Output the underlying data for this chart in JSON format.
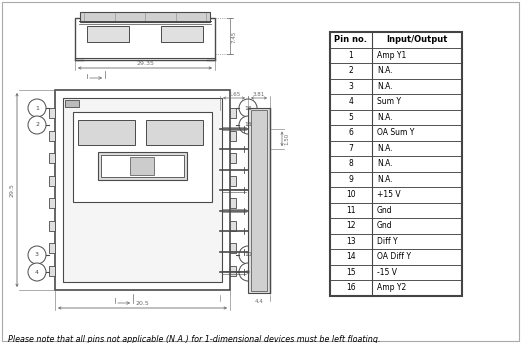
{
  "footnote": "Please note that all pins not applicable (N.A.) for 1-dimensional devices must be left floating.",
  "table_headers": [
    "Pin no.",
    "Input/Output"
  ],
  "table_rows": [
    [
      "1",
      "Amp Y1"
    ],
    [
      "2",
      "N.A."
    ],
    [
      "3",
      "N.A."
    ],
    [
      "4",
      "Sum Y"
    ],
    [
      "5",
      "N.A."
    ],
    [
      "6",
      "OA Sum Y"
    ],
    [
      "7",
      "N.A."
    ],
    [
      "8",
      "N.A."
    ],
    [
      "9",
      "N.A."
    ],
    [
      "10",
      "+15 V"
    ],
    [
      "11",
      "Gnd"
    ],
    [
      "12",
      "Gnd"
    ],
    [
      "13",
      "Diff Y"
    ],
    [
      "14",
      "OA Diff Y"
    ],
    [
      "15",
      "-15 V"
    ],
    [
      "16",
      "Amp Y2"
    ]
  ],
  "bg_color": "#ffffff",
  "line_color": "#4a4a4a",
  "dim_color": "#6a6a6a",
  "table_border": "#444444",
  "dim_text_size": 4.5,
  "pin_text_size": 4.5,
  "table_text_size": 6.0,
  "footnote_size": 5.8
}
